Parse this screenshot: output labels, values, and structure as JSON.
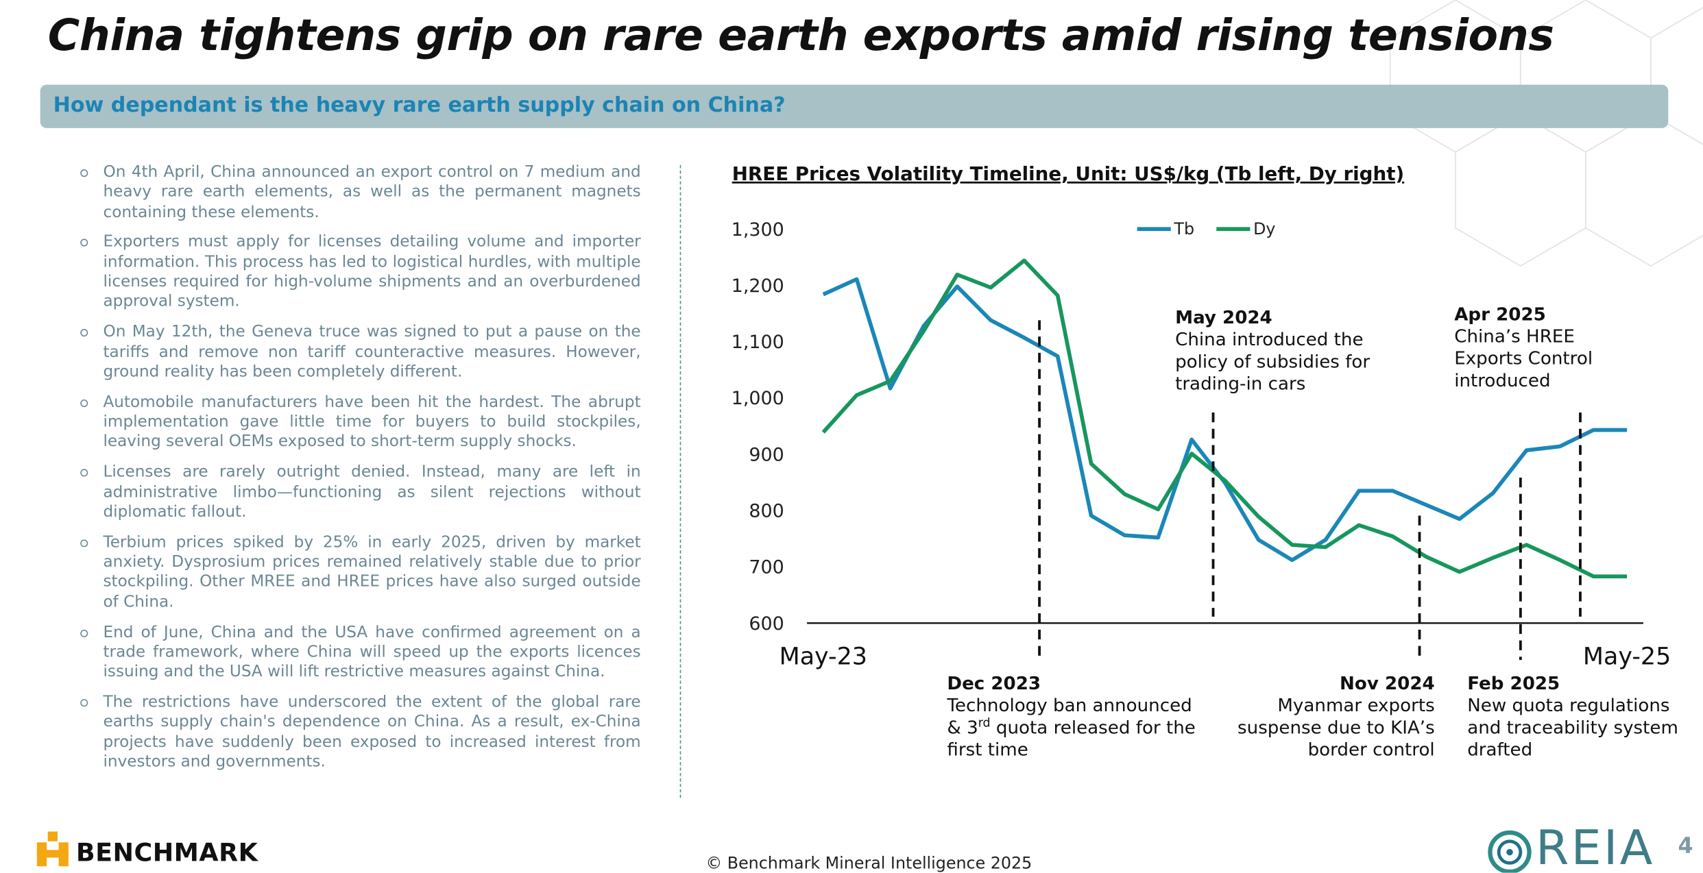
{
  "header": {
    "title": "China tightens grip on rare earth exports amid rising tensions",
    "subtitle": "How dependant is the heavy rare earth supply chain on China?"
  },
  "bullets": [
    "On 4th April, China announced an export control on 7 medium and heavy rare earth elements, as well as the permanent magnets containing these elements.",
    "Exporters must apply for licenses detailing volume and importer information. This process has led to logistical hurdles, with multiple licenses required for high-volume shipments and an overburdened approval system.",
    "On May 12th, the Geneva truce was signed to put a pause on the tariffs and remove non tariff counteractive measures. However, ground reality has been completely different.",
    "Automobile manufacturers have been hit the hardest. The abrupt implementation gave little time for buyers to build stockpiles, leaving several OEMs exposed to short-term supply shocks.",
    "Licenses are rarely outright denied. Instead, many are left in administrative limbo—functioning as silent rejections without diplomatic fallout.",
    "Terbium prices spiked by 25% in early 2025, driven by market anxiety. Dysprosium prices remained relatively stable due to prior stockpiling. Other MREE and HREE prices have also surged outside of China.",
    "End of June, China and the USA have confirmed agreement on a trade framework, where China will speed up the exports licences issuing and the USA will lift restrictive measures against China.",
    "The restrictions have underscored the extent of the global rare earths supply chain's dependence on China. As a result, ex-China projects have suddenly been exposed to increased interest from investors and governments."
  ],
  "chart_data": {
    "type": "line",
    "title": "HREE Prices Volatility Timeline, Unit: US$/kg (Tb left, Dy right)",
    "categories": [
      "May-23",
      null,
      null,
      null,
      null,
      null,
      null,
      null,
      null,
      null,
      null,
      null,
      null,
      null,
      null,
      null,
      null,
      null,
      null,
      null,
      null,
      null,
      null,
      null,
      "May-25"
    ],
    "series": [
      {
        "name": "Tb",
        "color": "#1a87b8",
        "values": [
          1184,
          1211,
          1017,
          1128,
          1198,
          1138,
          1107,
          1074,
          791,
          756,
          752,
          926,
          849,
          748,
          712,
          748,
          835,
          835,
          810,
          785,
          831,
          907,
          914,
          943,
          943
        ]
      },
      {
        "name": "Dy",
        "color": "#17965e",
        "values": [
          939,
          1005,
          1030,
          1119,
          1219,
          1196,
          1244,
          1182,
          883,
          829,
          802,
          901,
          853,
          789,
          739,
          735,
          774,
          754,
          718,
          691,
          716,
          739,
          712,
          683,
          683
        ]
      }
    ],
    "ylim": [
      600,
      1300
    ],
    "yticks": [
      600,
      700,
      800,
      900,
      {
        "value": 1000,
        "label": "1,000"
      },
      {
        "value": 1100,
        "label": "1,100"
      },
      {
        "value": 1200,
        "label": "1,200"
      },
      {
        "value": 1300,
        "label": "1,300"
      }
    ],
    "grid": false,
    "legend": "top",
    "annotations": [
      {
        "title": "Dec 2023",
        "lines": [
          "Technology ban announced",
          [
            "& 3",
            "rd",
            " quota released for the"
          ],
          "first time"
        ]
      },
      {
        "title": "May 2024",
        "lines": [
          "China introduced the",
          "policy of subsidies for",
          "trading-in cars"
        ]
      },
      {
        "title": "Nov 2024",
        "lines": [
          "Myanmar exports",
          "suspense due to KIA’s",
          "border control"
        ]
      },
      {
        "title": "Feb 2025",
        "lines": [
          "New quota regulations",
          "and traceability system",
          "drafted"
        ]
      },
      {
        "title": "Apr 2025",
        "lines": [
          "China’s HREE",
          "Exports Control",
          "introduced"
        ]
      }
    ]
  },
  "footer": {
    "copyright": "© Benchmark Mineral Intelligence 2025",
    "logo_left": "BENCHMARK",
    "logo_right": "REIA",
    "page": "4"
  }
}
